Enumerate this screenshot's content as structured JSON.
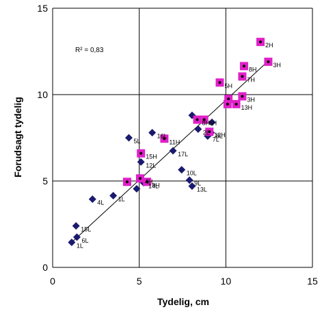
{
  "chart_data": {
    "type": "scatter",
    "title": "",
    "xlabel": "Tydelig, cm",
    "ylabel": "Forudsagt tydelig",
    "xlim": [
      0,
      15
    ],
    "ylim": [
      0,
      15
    ],
    "x_ticks": [
      "0",
      "5",
      "10",
      "15"
    ],
    "y_ticks": [
      "0",
      "5",
      "10",
      "15"
    ],
    "grid": "major gridlines at 5, 10, 15",
    "annotation": "R² = 0,83",
    "colors": {
      "L_marker": "#1a1a6e",
      "H_marker": "#e020c8",
      "H_dot": "#000000",
      "trendline": "#000000",
      "grid": "#000000"
    },
    "trendline": {
      "x": [
        1.1,
        12.4
      ],
      "y": [
        1.45,
        11.9
      ]
    },
    "series": [
      {
        "name": "L",
        "marker": "diamond",
        "points": [
          {
            "x": 1.1,
            "y": 1.45,
            "label": "1L"
          },
          {
            "x": 1.4,
            "y": 1.75,
            "label": "6L"
          },
          {
            "x": 1.35,
            "y": 2.4,
            "label": "15L"
          },
          {
            "x": 2.3,
            "y": 3.95,
            "label": "4L"
          },
          {
            "x": 3.5,
            "y": 4.15,
            "label": "1L"
          },
          {
            "x": 4.85,
            "y": 4.55,
            "label": ""
          },
          {
            "x": 5.25,
            "y": 4.9,
            "label": "14L"
          },
          {
            "x": 4.4,
            "y": 7.5,
            "label": "5L"
          },
          {
            "x": 5.1,
            "y": 6.1,
            "label": "12L"
          },
          {
            "x": 5.75,
            "y": 7.8,
            "label": "16L"
          },
          {
            "x": 6.95,
            "y": 6.75,
            "label": "17L"
          },
          {
            "x": 7.45,
            "y": 5.65,
            "label": "10L"
          },
          {
            "x": 7.9,
            "y": 5.05,
            "label": "9L"
          },
          {
            "x": 8.05,
            "y": 4.7,
            "label": "13L"
          },
          {
            "x": 8.05,
            "y": 8.8,
            "label": ""
          },
          {
            "x": 8.4,
            "y": 8.0,
            "label": "2L"
          },
          {
            "x": 8.95,
            "y": 7.6,
            "label": "7L"
          },
          {
            "x": 9.2,
            "y": 8.4,
            "label": ""
          },
          {
            "x": 9.15,
            "y": 7.8,
            "label": "8L"
          }
        ]
      },
      {
        "name": "H",
        "marker": "square",
        "points": [
          {
            "x": 12.0,
            "y": 13.05,
            "label": "2H"
          },
          {
            "x": 12.45,
            "y": 11.9,
            "label": "3H"
          },
          {
            "x": 11.05,
            "y": 11.65,
            "label": "8H"
          },
          {
            "x": 10.95,
            "y": 11.05,
            "label": "7H"
          },
          {
            "x": 9.65,
            "y": 10.7,
            "label": "5H"
          },
          {
            "x": 10.95,
            "y": 9.9,
            "label": "3H"
          },
          {
            "x": 10.15,
            "y": 9.75,
            "label": ""
          },
          {
            "x": 10.1,
            "y": 9.45,
            "label": ""
          },
          {
            "x": 10.6,
            "y": 9.45,
            "label": "13H"
          },
          {
            "x": 8.35,
            "y": 8.55,
            "label": "8H"
          },
          {
            "x": 8.75,
            "y": 8.55,
            "label": "6H"
          },
          {
            "x": 9.05,
            "y": 7.85,
            "label": "12H"
          },
          {
            "x": 6.45,
            "y": 7.45,
            "label": "11H"
          },
          {
            "x": 5.1,
            "y": 6.6,
            "label": "15H"
          },
          {
            "x": 4.3,
            "y": 4.95,
            "label": ""
          },
          {
            "x": 5.05,
            "y": 5.15,
            "label": "4H"
          },
          {
            "x": 5.45,
            "y": 4.95,
            "label": "9H"
          }
        ]
      }
    ]
  }
}
